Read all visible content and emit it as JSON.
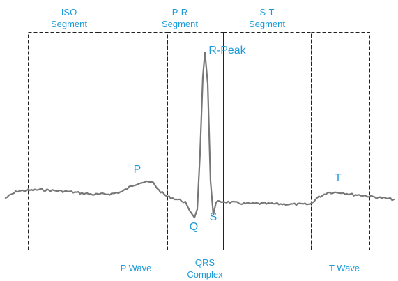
{
  "colors": {
    "label": "#1e9bd7",
    "trace": "#777777",
    "box_border": "#222222"
  },
  "segments": {
    "iso": "ISO\nSegment",
    "pr": "P-R\nSegment",
    "st": "S-T\nSegment"
  },
  "waves": {
    "p_wave": "P Wave",
    "qrs_complex": "QRS\nComplex",
    "t_wave": "T Wave"
  },
  "points": {
    "p": "P",
    "q": "Q",
    "r_peak": "R-Peak",
    "s": "S",
    "t": "T"
  }
}
